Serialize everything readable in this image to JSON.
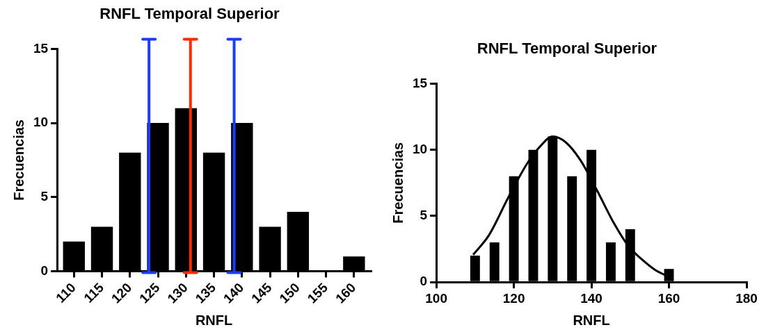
{
  "chart_data": [
    {
      "type": "bar",
      "title": "RNFL Temporal Superior",
      "xlabel": "RNFL",
      "ylabel": "Frecuencias",
      "x": [
        110,
        115,
        120,
        125,
        130,
        135,
        140,
        145,
        150,
        155,
        160
      ],
      "values": [
        2,
        3,
        8,
        10,
        11,
        8,
        10,
        3,
        4,
        0,
        1
      ],
      "color": "#000000",
      "xlim": [
        107,
        163
      ],
      "xticks": [
        110,
        115,
        120,
        125,
        130,
        135,
        140,
        145,
        150,
        155,
        160
      ],
      "ylim": [
        0,
        15
      ],
      "yticks": [
        0,
        5,
        10,
        15
      ],
      "ref_lines": [
        {
          "axis": "x",
          "value": 123.4,
          "color": "#1a3cff"
        },
        {
          "axis": "x",
          "value": 130.8,
          "color": "#ff2a00"
        },
        {
          "axis": "x",
          "value": 138.6,
          "color": "#1a3cff"
        }
      ]
    },
    {
      "type": "bar",
      "title": "RNFL Temporal Superior",
      "xlabel": "RNFL",
      "ylabel": "Frecuencias",
      "xlim": [
        100,
        180
      ],
      "xticks": [
        100,
        120,
        140,
        160,
        180
      ],
      "ylim": [
        0,
        15
      ],
      "yticks": [
        0,
        5,
        10,
        15
      ],
      "series": [
        {
          "type": "bar",
          "color": "#000000",
          "x": [
            110,
            115,
            120,
            125,
            130,
            135,
            140,
            145,
            150,
            155,
            160
          ],
          "values": [
            2,
            3,
            8,
            10,
            11,
            8,
            10,
            3,
            4,
            0,
            1
          ]
        },
        {
          "type": "line",
          "color": "#000000",
          "x": [
            109.5,
            113.6,
            118.5,
            123.5,
            126.6,
            130,
            133.4,
            137.2,
            141.5,
            145.9,
            149.6,
            152.7,
            156.4,
            159.3
          ],
          "values": [
            2.07,
            3.56,
            6.36,
            9.0,
            10.2,
            11.0,
            10.56,
            9.2,
            6.9,
            4.4,
            2.7,
            1.8,
            0.93,
            0.49
          ]
        }
      ]
    }
  ]
}
